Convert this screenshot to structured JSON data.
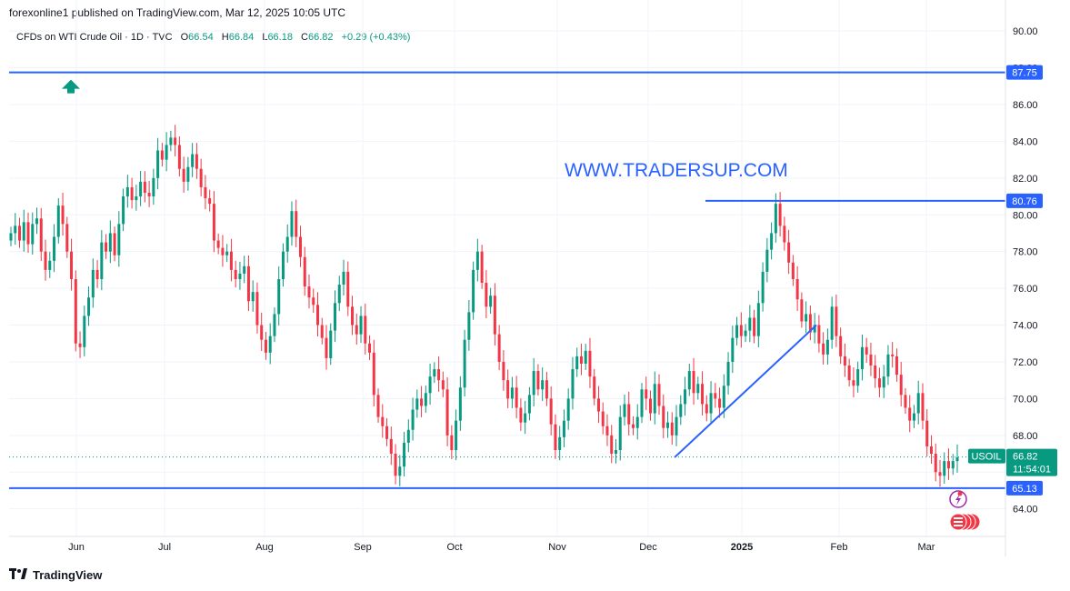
{
  "header": {
    "published": "forexonline1 published on TradingView.com, Mar 12, 2025 10:05 UTC"
  },
  "symbol": {
    "name": "CFDs on WTI Crude Oil · 1D · TVC",
    "open_label": "O",
    "open": "66.54",
    "high_label": "H",
    "high": "66.84",
    "low_label": "L",
    "low": "66.18",
    "close_label": "C",
    "close": "66.82",
    "change": "+0.29 (+0.43%)"
  },
  "watermark": "WWW.TRADERSUP.COM",
  "footer": {
    "brand": "TradingView"
  },
  "colors": {
    "up": "#089981",
    "down": "#f23645",
    "line": "#2962ff",
    "grid": "#f0f3fa"
  },
  "price_tag": {
    "ticker": "USOIL",
    "price": "66.82",
    "countdown": "11:54:01"
  },
  "level_labels": [
    "87.75",
    "80.76",
    "65.13"
  ],
  "chart_data": {
    "type": "candlestick",
    "ylim": [
      62.5,
      90.5
    ],
    "yticks": [
      "64.00",
      "66.00",
      "68.00",
      "70.00",
      "72.00",
      "74.00",
      "76.00",
      "78.00",
      "80.00",
      "82.00",
      "84.00",
      "86.00",
      "88.00",
      "90.00"
    ],
    "xticks": [
      {
        "label": "Jun",
        "bold": false
      },
      {
        "label": "Jul",
        "bold": false
      },
      {
        "label": "Aug",
        "bold": false
      },
      {
        "label": "Sep",
        "bold": false
      },
      {
        "label": "Oct",
        "bold": false
      },
      {
        "label": "Nov",
        "bold": false
      },
      {
        "label": "Dec",
        "bold": false
      },
      {
        "label": "2025",
        "bold": true
      },
      {
        "label": "Feb",
        "bold": false
      },
      {
        "label": "Mar",
        "bold": false
      }
    ],
    "horizontal_levels": [
      87.75,
      80.76,
      65.13
    ],
    "resistance_segment": {
      "from_date": "2024-12-16",
      "to_date": "2025-03-12",
      "price": 80.76
    },
    "trendline": {
      "from_date": "2024-12-09",
      "from_price": 66.8,
      "to_date": "2025-01-23",
      "to_price": 74.0
    },
    "last_price": 66.82,
    "ohlc_path": [
      79.0,
      79.4,
      78.6,
      79.6,
      78.4,
      79.5,
      79.8,
      78.0,
      77.0,
      77.5,
      78.8,
      80.5,
      79.5,
      78.0,
      76.5,
      73.0,
      72.8,
      74.5,
      75.5,
      77.0,
      76.5,
      78.5,
      78.0,
      79.0,
      77.8,
      79.5,
      81.0,
      81.5,
      80.8,
      81.0,
      81.8,
      81.2,
      81.0,
      82.0,
      83.5,
      83.0,
      83.8,
      84.2,
      83.8,
      82.5,
      81.8,
      82.6,
      83.3,
      82.5,
      81.5,
      80.9,
      80.6,
      78.6,
      78.2,
      77.8,
      78.0,
      77.0,
      76.5,
      76.8,
      77.2,
      75.3,
      75.8,
      74.0,
      73.2,
      72.5,
      73.4,
      74.6,
      76.5,
      78.0,
      78.8,
      80.2,
      78.8,
      77.7,
      76.1,
      75.5,
      75.1,
      74.0,
      73.3,
      72.2,
      73.7,
      75.2,
      76.2,
      76.9,
      75.0,
      74.0,
      73.5,
      74.5,
      73.0,
      72.5,
      70.2,
      69.0,
      68.5,
      67.8,
      67.0,
      65.8,
      66.3,
      67.6,
      68.3,
      69.4,
      70.0,
      69.6,
      70.3,
      71.2,
      71.6,
      71.0,
      70.5,
      68.0,
      67.2,
      68.8,
      70.6,
      73.2,
      74.7,
      77.0,
      78.0,
      76.3,
      75.0,
      75.6,
      73.5,
      72.0,
      71.0,
      70.0,
      70.6,
      69.5,
      68.7,
      69.2,
      70.2,
      71.5,
      70.5,
      71.0,
      70.0,
      68.6,
      67.2,
      67.9,
      68.8,
      70.0,
      71.6,
      72.3,
      71.9,
      72.6,
      71.2,
      70.0,
      69.3,
      68.5,
      68.0,
      67.0,
      67.2,
      69.0,
      69.7,
      68.6,
      68.4,
      69.0,
      70.5,
      70.0,
      69.2,
      70.8,
      69.6,
      68.4,
      68.7,
      68.0,
      69.0,
      69.7,
      70.5,
      71.5,
      70.3,
      70.8,
      69.7,
      69.2,
      70.3,
      70.0,
      69.5,
      70.7,
      72.0,
      73.3,
      74.0,
      73.4,
      73.7,
      74.4,
      73.4,
      75.2,
      76.9,
      78.1,
      79.0,
      80.6,
      79.4,
      78.5,
      77.4,
      76.5,
      75.4,
      74.2,
      74.6,
      73.6,
      74.0,
      73.0,
      72.4,
      73.2,
      75.0,
      73.4,
      72.3,
      71.8,
      71.0,
      70.7,
      71.6,
      72.8,
      72.4,
      71.8,
      71.1,
      70.6,
      71.2,
      72.4,
      72.3,
      71.3,
      70.2,
      69.5,
      68.8,
      69.2,
      70.3,
      68.8,
      67.4,
      67.0,
      66.0,
      65.8,
      66.6,
      66.2,
      66.6,
      66.8
    ]
  }
}
